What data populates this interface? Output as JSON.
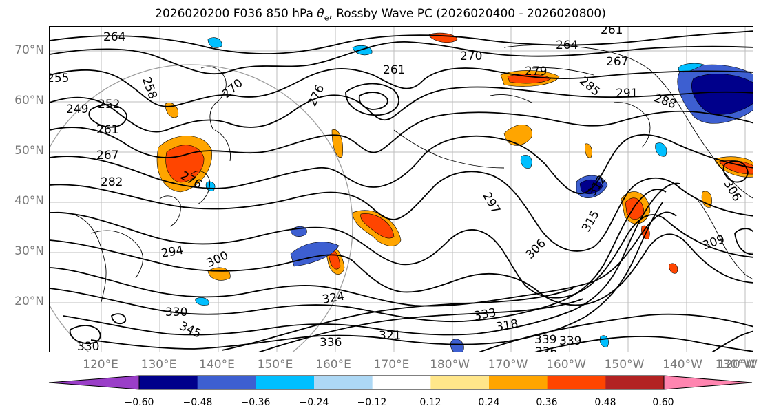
{
  "title_parts": {
    "prefix": "2026020200 F036 850 hPa ",
    "var_main": "θ",
    "var_sub": "e",
    "suffix": ", Rossby Wave PC (2026020400 - 2026020800)"
  },
  "map": {
    "lat_labels": [
      "70°N",
      "60°N",
      "50°N",
      "40°N",
      "30°N",
      "20°N"
    ],
    "lon_labels": [
      "120°E",
      "130°E",
      "140°E",
      "150°E",
      "160°E",
      "170°E",
      "180°W",
      "170°W",
      "160°W",
      "150°W",
      "140°W",
      "130°W",
      "120°W"
    ],
    "contour_labels": [
      "264",
      "261",
      "255",
      "258",
      "249",
      "252",
      "261",
      "267",
      "270",
      "276",
      "261",
      "270",
      "264",
      "267",
      "279",
      "285",
      "291",
      "288",
      "276",
      "282",
      "297",
      "294",
      "300",
      "306",
      "315",
      "312",
      "309",
      "306",
      "324",
      "330",
      "333",
      "318",
      "345",
      "336",
      "339",
      "321",
      "330",
      "336",
      "339"
    ]
  },
  "colorbar": {
    "tick_labels": [
      "−0.60",
      "−0.48",
      "−0.36",
      "−0.24",
      "−0.12",
      "0.12",
      "0.24",
      "0.36",
      "0.48",
      "0.60"
    ],
    "colors": [
      "#9a3ec8",
      "#00008b",
      "#3d5fd1",
      "#00bfff",
      "#add8f5",
      "#ffffff",
      "#ffe68a",
      "#ffa500",
      "#ff4500",
      "#b22222",
      "#ff85b0"
    ]
  }
}
